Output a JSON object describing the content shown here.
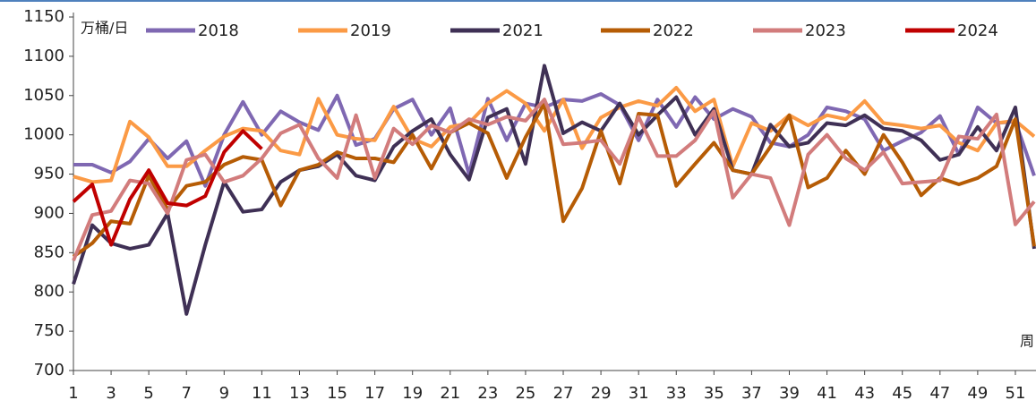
{
  "chart_data": {
    "type": "line",
    "y_unit_label": "万桶/日",
    "x_unit_label": "周",
    "x": [
      1,
      2,
      3,
      4,
      5,
      6,
      7,
      8,
      9,
      10,
      11,
      12,
      13,
      14,
      15,
      16,
      17,
      18,
      19,
      20,
      21,
      22,
      23,
      24,
      25,
      26,
      27,
      28,
      29,
      30,
      31,
      32,
      33,
      34,
      35,
      36,
      37,
      38,
      39,
      40,
      41,
      42,
      43,
      44,
      45,
      46,
      47,
      48,
      49,
      50,
      51,
      52
    ],
    "xlim": [
      1,
      52
    ],
    "xticks": [
      1,
      3,
      5,
      7,
      9,
      11,
      13,
      15,
      17,
      19,
      21,
      23,
      25,
      27,
      29,
      31,
      33,
      35,
      37,
      39,
      41,
      43,
      45,
      47,
      49,
      51
    ],
    "ylim": [
      700,
      1150
    ],
    "yticks": [
      700,
      750,
      800,
      850,
      900,
      950,
      1000,
      1050,
      1100,
      1150
    ],
    "series": [
      {
        "name": "2018",
        "color": "#7f68b2",
        "values": [
          962,
          962,
          952,
          966,
          995,
          970,
          992,
          935,
          1000,
          1042,
          1000,
          1030,
          1016,
          1006,
          1050,
          987,
          995,
          1033,
          1045,
          1000,
          1034,
          950,
          1046,
          993,
          1040,
          1035,
          1045,
          1043,
          1052,
          1038,
          993,
          1045,
          1010,
          1048,
          1020,
          1033,
          1023,
          990,
          985,
          1000,
          1035,
          1030,
          1020,
          980,
          992,
          1003,
          1024,
          975,
          1035,
          1015,
          1017,
          948
        ]
      },
      {
        "name": "2019",
        "color": "#fb9a45",
        "values": [
          947,
          940,
          942,
          1017,
          997,
          960,
          960,
          980,
          998,
          1008,
          1005,
          980,
          975,
          1046,
          1000,
          995,
          993,
          1036,
          995,
          985,
          1010,
          1015,
          1040,
          1056,
          1040,
          1005,
          1045,
          983,
          1022,
          1035,
          1043,
          1037,
          1060,
          1030,
          1045,
          960,
          1015,
          1005,
          1025,
          1012,
          1025,
          1020,
          1043,
          1015,
          1012,
          1008,
          1012,
          990,
          980,
          1015,
          1018,
          998
        ]
      },
      {
        "name": "2021",
        "color": "#3f3055",
        "values": [
          810,
          885,
          862,
          855,
          860,
          900,
          772,
          860,
          940,
          902,
          905,
          940,
          955,
          960,
          975,
          948,
          942,
          985,
          1005,
          1020,
          975,
          943,
          1022,
          1033,
          963,
          1088,
          1002,
          1016,
          1005,
          1040,
          1000,
          1025,
          1048,
          1000,
          1033,
          955,
          950,
          1013,
          985,
          990,
          1015,
          1012,
          1025,
          1008,
          1005,
          993,
          968,
          975,
          1010,
          980,
          1035,
          855
        ]
      },
      {
        "name": "2022",
        "color": "#b65c05",
        "values": [
          845,
          862,
          890,
          887,
          948,
          905,
          935,
          940,
          962,
          972,
          968,
          910,
          955,
          962,
          978,
          970,
          970,
          965,
          1000,
          957,
          1003,
          1015,
          1002,
          945,
          997,
          1040,
          890,
          932,
          1005,
          938,
          1027,
          1025,
          935,
          963,
          990,
          955,
          950,
          985,
          1025,
          933,
          945,
          980,
          950,
          1000,
          965,
          923,
          945,
          937,
          945,
          960,
          1020,
          858
        ]
      },
      {
        "name": "2023",
        "color": "#d27c7c",
        "values": [
          840,
          898,
          903,
          942,
          938,
          900,
          968,
          975,
          940,
          948,
          970,
          1002,
          1013,
          970,
          945,
          1025,
          945,
          1008,
          988,
          1012,
          1003,
          1020,
          1013,
          1023,
          1018,
          1045,
          988,
          990,
          993,
          963,
          1023,
          973,
          973,
          993,
          1030,
          920,
          950,
          945,
          885,
          975,
          1000,
          970,
          955,
          978,
          938,
          940,
          942,
          998,
          995,
          1026,
          886,
          915
        ]
      },
      {
        "name": "2024",
        "color": "#c00000",
        "values": [
          915,
          937,
          860,
          918,
          955,
          913,
          910,
          922,
          978,
          1005,
          982,
          null,
          null,
          null,
          null,
          null,
          null,
          null,
          null,
          null,
          null,
          null,
          null,
          null,
          null,
          null,
          null,
          null,
          null,
          null,
          null,
          null,
          null,
          null,
          null,
          null,
          null,
          null,
          null,
          null,
          null,
          null,
          null,
          null,
          null,
          null,
          null,
          null,
          null,
          null,
          null,
          null
        ]
      }
    ]
  }
}
